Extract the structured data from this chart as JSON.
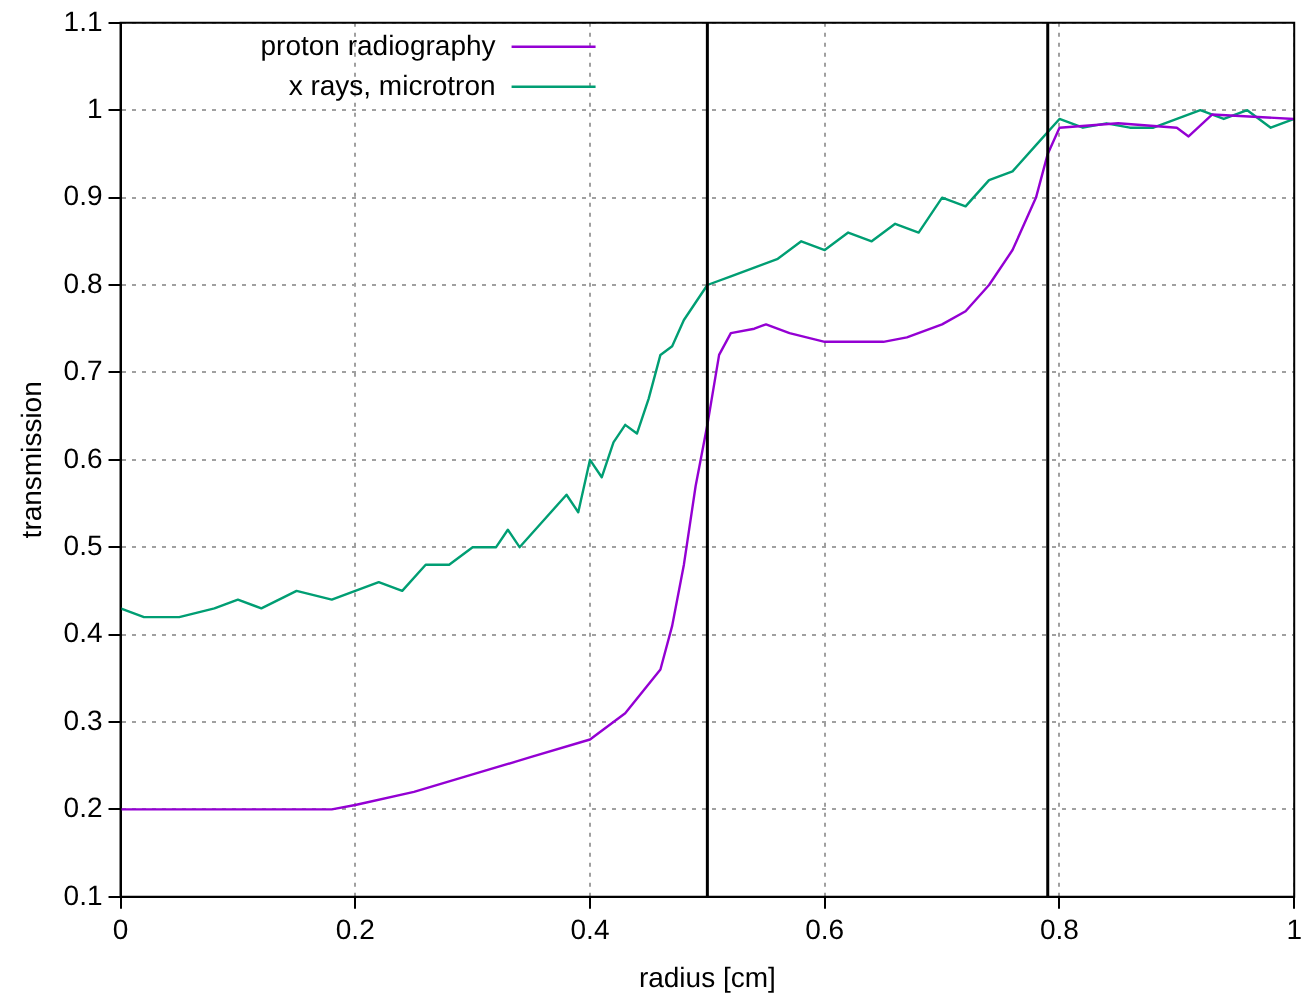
{
  "chart_data": {
    "type": "line",
    "xlabel": "radius [cm]",
    "ylabel": "transmission",
    "xlim": [
      0,
      1
    ],
    "xticks": [
      0,
      0.2,
      0.4,
      0.6,
      0.8,
      1
    ],
    "ylim": [
      0.1,
      1.1
    ],
    "yticks": [
      0.1,
      0.2,
      0.3,
      0.4,
      0.5,
      0.6,
      0.7,
      0.8,
      0.9,
      1,
      1.1
    ],
    "grid": true,
    "legend": "top left",
    "marker": "none",
    "line_style": "solid",
    "series": [
      {
        "name": "proton radiography",
        "color": "#9400d3",
        "x": [
          0,
          0.18,
          0.2,
          0.25,
          0.3,
          0.35,
          0.4,
          0.43,
          0.46,
          0.47,
          0.48,
          0.49,
          0.5,
          0.51,
          0.52,
          0.54,
          0.55,
          0.57,
          0.6,
          0.65,
          0.67,
          0.7,
          0.72,
          0.74,
          0.76,
          0.78,
          0.79,
          0.8,
          0.85,
          0.9,
          0.91,
          0.93,
          1
        ],
        "values": [
          0.2,
          0.2,
          0.205,
          0.22,
          0.24,
          0.26,
          0.28,
          0.31,
          0.36,
          0.41,
          0.48,
          0.57,
          0.64,
          0.72,
          0.745,
          0.75,
          0.755,
          0.745,
          0.735,
          0.735,
          0.74,
          0.755,
          0.77,
          0.8,
          0.84,
          0.9,
          0.95,
          0.98,
          0.985,
          0.98,
          0.97,
          0.995,
          0.99
        ]
      },
      {
        "name": "x rays, microtron",
        "color": "#009e73",
        "x": [
          0,
          0.02,
          0.05,
          0.08,
          0.1,
          0.12,
          0.15,
          0.18,
          0.2,
          0.22,
          0.24,
          0.26,
          0.28,
          0.3,
          0.32,
          0.33,
          0.34,
          0.36,
          0.38,
          0.39,
          0.4,
          0.41,
          0.42,
          0.43,
          0.44,
          0.45,
          0.46,
          0.47,
          0.48,
          0.49,
          0.5,
          0.52,
          0.54,
          0.56,
          0.58,
          0.6,
          0.62,
          0.64,
          0.66,
          0.68,
          0.7,
          0.72,
          0.74,
          0.76,
          0.78,
          0.8,
          0.82,
          0.84,
          0.86,
          0.88,
          0.9,
          0.92,
          0.94,
          0.96,
          0.98,
          1
        ],
        "values": [
          0.43,
          0.42,
          0.42,
          0.43,
          0.44,
          0.43,
          0.45,
          0.44,
          0.45,
          0.46,
          0.45,
          0.48,
          0.48,
          0.5,
          0.5,
          0.52,
          0.5,
          0.53,
          0.56,
          0.54,
          0.6,
          0.58,
          0.62,
          0.64,
          0.63,
          0.67,
          0.72,
          0.73,
          0.76,
          0.78,
          0.8,
          0.81,
          0.82,
          0.83,
          0.85,
          0.84,
          0.86,
          0.85,
          0.87,
          0.86,
          0.9,
          0.89,
          0.92,
          0.93,
          0.96,
          0.99,
          0.98,
          0.985,
          0.98,
          0.98,
          0.99,
          1,
          0.99,
          1,
          0.98,
          0.99
        ]
      }
    ],
    "ref_lines": [
      {
        "axis": "x",
        "value": 0.5,
        "color": "#000000"
      },
      {
        "axis": "x",
        "value": 0.79,
        "color": "#000000"
      }
    ]
  }
}
